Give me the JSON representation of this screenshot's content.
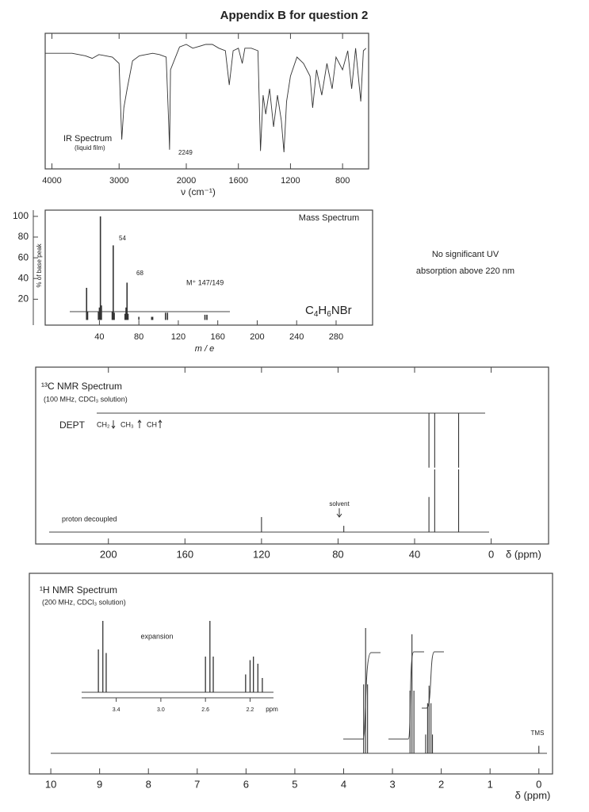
{
  "title": "Appendix B for question 2",
  "uv_note": [
    "No significant UV",
    "absorption above 220 nm"
  ],
  "chart_data": [
    {
      "type": "line",
      "title": "IR Spectrum",
      "subtitle": "(liquid film)",
      "annotations": [
        "2249"
      ],
      "x_label": "ν (cm⁻¹)",
      "x_scale_break": 2000,
      "xlim": [
        4100,
        600
      ],
      "ylim": [
        0,
        100
      ],
      "xticks": [
        4000,
        3000,
        2000,
        1600,
        1200,
        800
      ],
      "color": "#333333",
      "x": [
        4100,
        3700,
        3500,
        3400,
        3300,
        3100,
        3000,
        2960,
        2930,
        2880,
        2800,
        2700,
        2500,
        2400,
        2300,
        2260,
        2249,
        2235,
        2100,
        2000,
        1950,
        1850,
        1800,
        1750,
        1700,
        1670,
        1640,
        1600,
        1570,
        1550,
        1500,
        1450,
        1430,
        1410,
        1390,
        1360,
        1330,
        1300,
        1270,
        1250,
        1230,
        1200,
        1150,
        1100,
        1050,
        1030,
        1000,
        960,
        920,
        880,
        850,
        800,
        760,
        730,
        700,
        660,
        640,
        620
      ],
      "values": [
        88,
        88,
        86,
        84,
        87,
        85,
        80,
        20,
        45,
        60,
        82,
        86,
        88,
        87,
        85,
        30,
        12,
        75,
        93,
        95,
        92,
        95,
        95,
        92,
        90,
        63,
        90,
        92,
        80,
        92,
        92,
        90,
        11,
        55,
        40,
        60,
        30,
        55,
        35,
        10,
        50,
        70,
        85,
        80,
        70,
        45,
        75,
        55,
        80,
        60,
        85,
        75,
        90,
        60,
        92,
        50,
        90,
        92
      ]
    },
    {
      "type": "bar",
      "title": "Mass Spectrum",
      "x_label": "m / e",
      "y_label": "% of base peak",
      "annotations": [
        "54",
        "68",
        "M⁺ 147/149"
      ],
      "formula": [
        "C",
        "4",
        "H",
        "6",
        "NBr"
      ],
      "xlim": [
        -15,
        317
      ],
      "ylim": [
        -5,
        106
      ],
      "xticks": [
        40,
        80,
        120,
        160,
        200,
        240,
        280
      ],
      "yticks": [
        20,
        40,
        60,
        80,
        100
      ],
      "color": "#333333",
      "x": [
        27,
        28,
        39,
        40,
        41,
        42,
        53,
        54,
        55,
        66,
        67,
        68,
        69,
        80,
        93,
        94,
        107,
        109,
        147,
        149
      ],
      "values": [
        31,
        8,
        8,
        12,
        100,
        14,
        8,
        72,
        7,
        6,
        12,
        36,
        6,
        3,
        3,
        3,
        7,
        7,
        5,
        5
      ]
    },
    {
      "type": "stick",
      "title": "¹³C NMR Spectrum",
      "subtitle": "(100 MHz, CDCl₃ solution)",
      "dept_legend": [
        "CH₂",
        "CH₃",
        "CH"
      ],
      "annotations": [
        "solvent"
      ],
      "x_label": "δ (ppm)",
      "xlim": [
        238,
        -30
      ],
      "xticks": [
        200,
        160,
        120,
        80,
        40,
        0
      ],
      "color": "#333333",
      "series": [
        {
          "name": "DEPT",
          "x": [
            32.5,
            29.5,
            17
          ],
          "values": [
            -87,
            -87,
            -87
          ]
        },
        {
          "name": "proton decoupled",
          "x": [
            120,
            77,
            32.5,
            29.5,
            17
          ],
          "values": [
            24,
            10,
            56,
            100,
            100
          ]
        }
      ]
    },
    {
      "type": "stick",
      "title": "¹H NMR Spectrum",
      "subtitle": "(200 MHz, CDCl₃ solution)",
      "annotations": [
        "TMS"
      ],
      "x_label": "δ (ppm)",
      "xlim": [
        10.44,
        -0.28
      ],
      "xticks": [
        10,
        9,
        8,
        7,
        6,
        5,
        4,
        3,
        2,
        1,
        0
      ],
      "color": "#333333",
      "series": [
        {
          "x": [
            3.59,
            3.55,
            3.51,
            2.64,
            2.6,
            2.56,
            2.32,
            2.28,
            2.25,
            2.21,
            2.18,
            0
          ],
          "values": [
            55,
            100,
            55,
            50,
            95,
            50,
            15,
            40,
            54,
            40,
            15,
            6
          ]
        }
      ],
      "inset": {
        "title": "expansion",
        "x_label": "ppm",
        "xlim": [
          3.71,
          1.99
        ],
        "xticks": [
          3.4,
          {
            "value": 3,
            "label": "3.0"
          },
          2.6,
          2.2
        ],
        "x": [
          3.56,
          3.52,
          3.49,
          2.6,
          2.56,
          2.53,
          2.24,
          2.2,
          2.17,
          2.13,
          2.09
        ],
        "values": [
          60,
          100,
          55,
          50,
          100,
          50,
          25,
          45,
          50,
          40,
          20
        ]
      }
    }
  ]
}
